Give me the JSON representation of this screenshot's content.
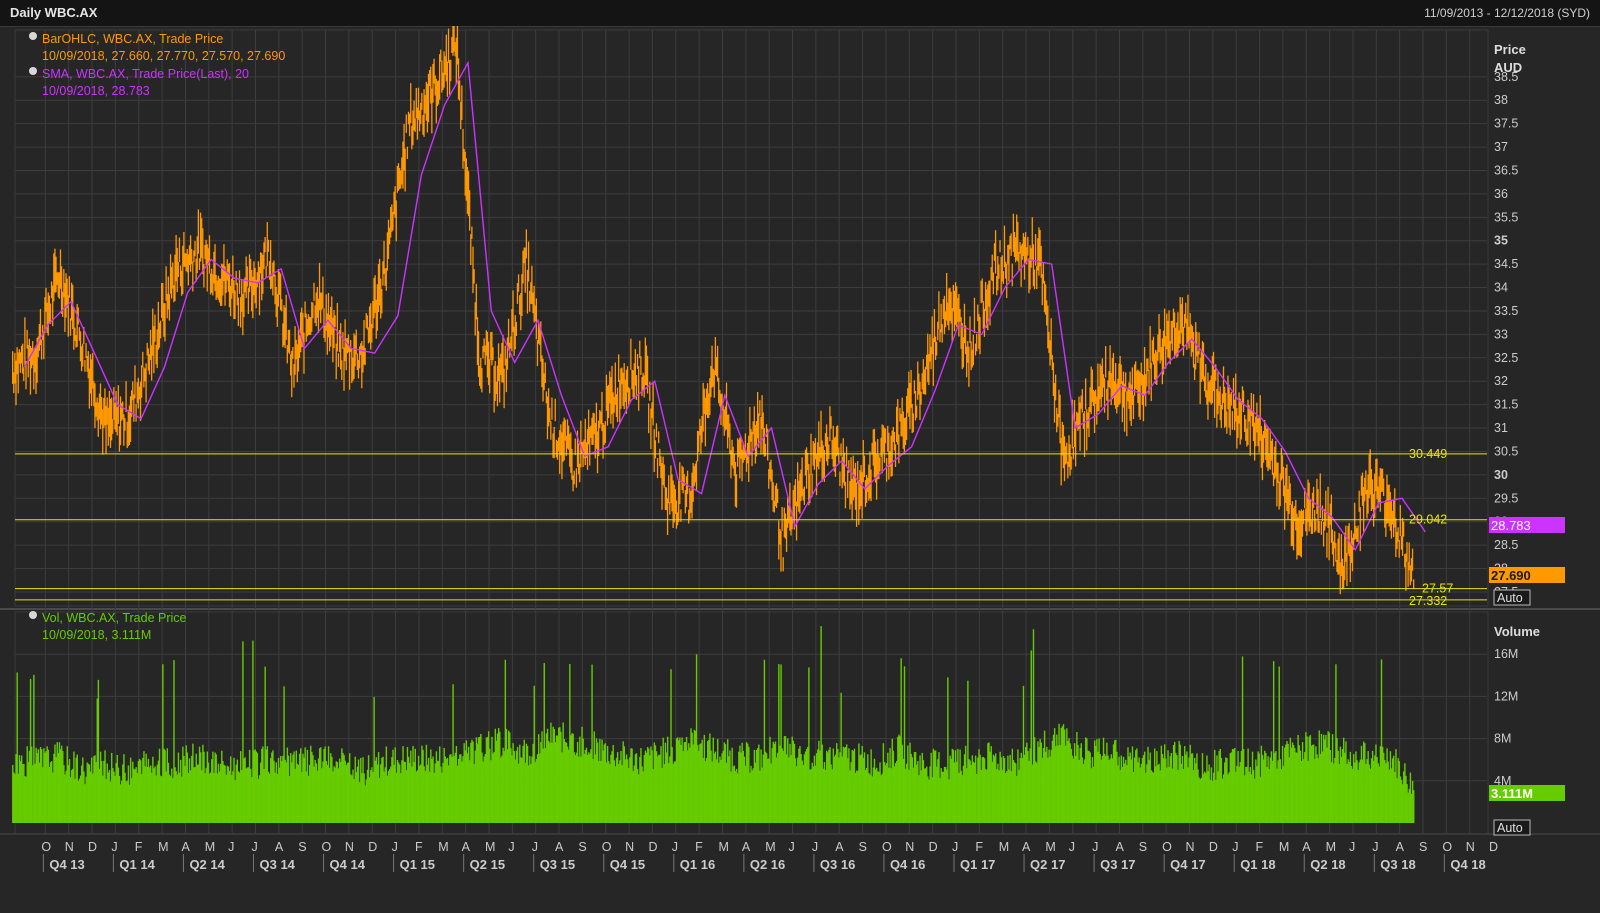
{
  "header": {
    "title": "Daily WBC.AX",
    "date_range": "11/09/2013 - 12/12/2018 (SYD)"
  },
  "legend": {
    "ohlc_name": "BarOHLC, WBC.AX, Trade Price",
    "ohlc_values": "10/09/2018, 27.660, 27.770, 27.570, 27.690",
    "sma_name": "SMA, WBC.AX, Trade Price(Last), 20",
    "sma_values": "10/09/2018, 28.783",
    "vol_name": "Vol, WBC.AX, Trade Price",
    "vol_values": "10/09/2018, 3.111M"
  },
  "price_axis": {
    "title_line1": "Price",
    "title_line2": "AUD",
    "ticks": [
      "38.5",
      "38",
      "37.5",
      "37",
      "36.5",
      "36",
      "35.5",
      "35",
      "34.5",
      "34",
      "33.5",
      "33",
      "32.5",
      "32",
      "31.5",
      "31",
      "30.5",
      "30",
      "29.5",
      "29",
      "28.5",
      "28",
      "27.5"
    ],
    "current_price_label": "27.690",
    "sma_label": "28.783",
    "auto_label": "Auto"
  },
  "volume_axis": {
    "title": "Volume",
    "ticks": [
      "16M",
      "12M",
      "8M",
      "4M"
    ],
    "current_volume_label": "3.111M",
    "auto_label": "Auto"
  },
  "levels": [
    {
      "label": "30.449",
      "value": 30.449
    },
    {
      "label": "29.042",
      "value": 29.042
    },
    {
      "label": "27.57",
      "value": 27.57
    },
    {
      "label": "27.332",
      "value": 27.332
    }
  ],
  "x_axis": {
    "months": [
      "O",
      "N",
      "D",
      "J",
      "F",
      "M",
      "A",
      "M",
      "J",
      "J",
      "A",
      "S",
      "O",
      "N",
      "D",
      "J",
      "F",
      "M",
      "A",
      "M",
      "J",
      "J",
      "A",
      "S",
      "O",
      "N",
      "D",
      "J",
      "F",
      "M",
      "A",
      "M",
      "J",
      "J",
      "A",
      "S",
      "O",
      "N",
      "D",
      "J",
      "F",
      "M",
      "A",
      "M",
      "J",
      "J",
      "A",
      "S",
      "O",
      "N",
      "D",
      "J",
      "F",
      "M",
      "A",
      "M",
      "J",
      "J",
      "A",
      "S",
      "O",
      "N",
      "D",
      "J",
      "F",
      "M",
      "A",
      "M",
      "J",
      "J",
      "A",
      "S",
      "O",
      "N",
      "D"
    ],
    "quarters": [
      "Q4 13",
      "Q1 14",
      "Q2 14",
      "Q3 14",
      "Q4 14",
      "Q1 15",
      "Q2 15",
      "Q3 15",
      "Q4 15",
      "Q1 16",
      "Q2 16",
      "Q3 16",
      "Q4 16",
      "Q1 17",
      "Q2 17",
      "Q3 17",
      "Q4 17",
      "Q1 18",
      "Q2 18",
      "Q3 18",
      "Q4 18"
    ]
  },
  "colors": {
    "background": "#262626",
    "grid": "#3d3d3d",
    "price_bars": "#ff9900",
    "sma": "#cc33ff",
    "volume": "#66cc00",
    "levels": "#e6e600",
    "axis_text": "#cccccc"
  },
  "chart_data": [
    {
      "type": "line",
      "title": "",
      "x_start": "2013-09-11",
      "x_end": "2018-09-10",
      "ylim": [
        27.2,
        39.5
      ],
      "series": [
        {
          "name": "BarOHLC, WBC.AX, Trade Price",
          "x": [
            "2013-09",
            "2013-10",
            "2013-11",
            "2013-12",
            "2014-01",
            "2014-02",
            "2014-03",
            "2014-04",
            "2014-05",
            "2014-06",
            "2014-07",
            "2014-08",
            "2014-09",
            "2014-10",
            "2014-11",
            "2014-12",
            "2015-01",
            "2015-02",
            "2015-03",
            "2015-04",
            "2015-05",
            "2015-06",
            "2015-07",
            "2015-08",
            "2015-09",
            "2015-10",
            "2015-11",
            "2015-12",
            "2016-01",
            "2016-02",
            "2016-03",
            "2016-04",
            "2016-05",
            "2016-06",
            "2016-07",
            "2016-08",
            "2016-09",
            "2016-10",
            "2016-11",
            "2016-12",
            "2017-01",
            "2017-02",
            "2017-03",
            "2017-04",
            "2017-05",
            "2017-06",
            "2017-07",
            "2017-08",
            "2017-09",
            "2017-10",
            "2017-11",
            "2017-12",
            "2018-01",
            "2018-02",
            "2018-03",
            "2018-04",
            "2018-05",
            "2018-06",
            "2018-07",
            "2018-08",
            "2018-09"
          ],
          "values": [
            32.3,
            32.6,
            34.3,
            32.8,
            31.0,
            31.3,
            32.7,
            34.4,
            34.8,
            34.2,
            33.8,
            34.8,
            32.2,
            33.9,
            32.6,
            32.6,
            34.5,
            37.5,
            38.2,
            39.2,
            32.5,
            32.1,
            34.5,
            31.2,
            30.2,
            30.8,
            32.0,
            32.3,
            29.5,
            29.5,
            32.4,
            30.0,
            31.3,
            28.5,
            30.0,
            30.8,
            29.6,
            30.3,
            30.9,
            32.0,
            33.8,
            32.7,
            34.3,
            34.8,
            34.5,
            30.3,
            31.4,
            32.1,
            31.6,
            32.6,
            33.3,
            32.2,
            31.4,
            31.2,
            30.3,
            29.0,
            29.3,
            28.0,
            29.8,
            29.4,
            27.69
          ]
        },
        {
          "name": "SMA, WBC.AX, Trade Price(Last), 20",
          "x": [
            "2013-09",
            "2013-10",
            "2013-11",
            "2013-12",
            "2014-01",
            "2014-02",
            "2014-03",
            "2014-04",
            "2014-05",
            "2014-06",
            "2014-07",
            "2014-08",
            "2014-09",
            "2014-10",
            "2014-11",
            "2014-12",
            "2015-01",
            "2015-02",
            "2015-03",
            "2015-04",
            "2015-05",
            "2015-06",
            "2015-07",
            "2015-08",
            "2015-09",
            "2015-10",
            "2015-11",
            "2015-12",
            "2016-01",
            "2016-02",
            "2016-03",
            "2016-04",
            "2016-05",
            "2016-06",
            "2016-07",
            "2016-08",
            "2016-09",
            "2016-10",
            "2016-11",
            "2016-12",
            "2017-01",
            "2017-02",
            "2017-03",
            "2017-04",
            "2017-05",
            "2017-06",
            "2017-07",
            "2017-08",
            "2017-09",
            "2017-10",
            "2017-11",
            "2017-12",
            "2018-01",
            "2018-02",
            "2018-03",
            "2018-04",
            "2018-05",
            "2018-06",
            "2018-07",
            "2018-08",
            "2018-09"
          ],
          "values": [
            32.3,
            33.2,
            33.7,
            32.6,
            31.5,
            31.2,
            32.3,
            33.9,
            34.6,
            34.2,
            34.1,
            34.4,
            32.7,
            33.3,
            32.7,
            32.6,
            33.4,
            36.4,
            37.9,
            38.8,
            33.5,
            32.4,
            33.3,
            31.7,
            30.4,
            30.6,
            31.6,
            32.0,
            29.9,
            29.6,
            31.7,
            30.4,
            31.0,
            28.9,
            29.8,
            30.3,
            29.7,
            30.2,
            30.6,
            31.8,
            33.2,
            33.0,
            34.0,
            34.6,
            34.5,
            31.0,
            31.3,
            31.9,
            31.7,
            32.4,
            32.9,
            32.3,
            31.6,
            31.2,
            30.5,
            29.5,
            29.1,
            28.4,
            29.4,
            29.5,
            28.783
          ]
        }
      ],
      "horizontal_lines": [
        30.449,
        29.042,
        27.57,
        27.332
      ]
    },
    {
      "type": "bar",
      "title": "",
      "series_name": "Vol, WBC.AX, Trade Price",
      "ylim": [
        0,
        20
      ],
      "unit": "M",
      "x": [
        "2013-09",
        "2013-10",
        "2013-11",
        "2013-12",
        "2014-01",
        "2014-02",
        "2014-03",
        "2014-04",
        "2014-05",
        "2014-06",
        "2014-07",
        "2014-08",
        "2014-09",
        "2014-10",
        "2014-11",
        "2014-12",
        "2015-01",
        "2015-02",
        "2015-03",
        "2015-04",
        "2015-05",
        "2015-06",
        "2015-07",
        "2015-08",
        "2015-09",
        "2015-10",
        "2015-11",
        "2015-12",
        "2016-01",
        "2016-02",
        "2016-03",
        "2016-04",
        "2016-05",
        "2016-06",
        "2016-07",
        "2016-08",
        "2016-09",
        "2016-10",
        "2016-11",
        "2016-12",
        "2017-01",
        "2017-02",
        "2017-03",
        "2017-04",
        "2017-05",
        "2017-06",
        "2017-07",
        "2017-08",
        "2017-09",
        "2017-10",
        "2017-11",
        "2017-12",
        "2018-01",
        "2018-02",
        "2018-03",
        "2018-04",
        "2018-05",
        "2018-06",
        "2018-07",
        "2018-08",
        "2018-09"
      ],
      "values": [
        5.5,
        5.8,
        6.2,
        5.0,
        5.3,
        4.8,
        5.5,
        5.6,
        6.0,
        5.4,
        5.2,
        5.8,
        5.6,
        5.9,
        5.5,
        4.8,
        5.7,
        6.0,
        5.8,
        6.2,
        7.0,
        7.6,
        6.6,
        8.0,
        7.8,
        7.0,
        6.2,
        5.8,
        6.6,
        7.8,
        6.8,
        6.0,
        6.0,
        7.4,
        6.0,
        6.4,
        6.0,
        5.6,
        6.8,
        5.4,
        5.4,
        6.0,
        6.0,
        5.8,
        7.2,
        8.0,
        6.4,
        6.6,
        5.8,
        5.6,
        6.4,
        5.2,
        5.6,
        5.4,
        6.0,
        6.8,
        7.4,
        6.6,
        6.0,
        6.2,
        3.111
      ]
    }
  ]
}
